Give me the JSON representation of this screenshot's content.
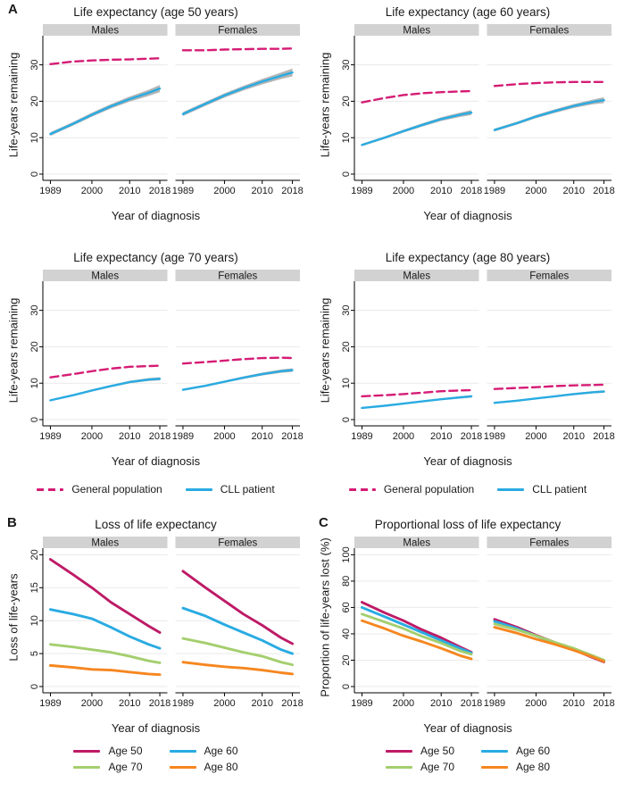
{
  "figure": {
    "panels": {
      "a_label": "A",
      "b_label": "B",
      "c_label": "C"
    }
  },
  "colors": {
    "general_population": "#D51C75",
    "cll_patient": "#29ABE2",
    "age50": "#BE1A66",
    "age60": "#29ABE2",
    "age70": "#A4CE6E",
    "age80": "#F6861F",
    "ci_band": "#B5B5B5",
    "facet_strip_bg": "#D2D2D2",
    "gridline": "#E9E9E9",
    "axis": "#000000"
  },
  "legend_a": {
    "general": "General population",
    "cll": "CLL patient"
  },
  "legend_ages": [
    {
      "label": "Age 50",
      "color_key": "age50"
    },
    {
      "label": "Age 60",
      "color_key": "age60"
    },
    {
      "label": "Age 70",
      "color_key": "age70"
    },
    {
      "label": "Age 80",
      "color_key": "age80"
    }
  ],
  "chart_data": [
    {
      "id": "life-expectancy-age-50",
      "panel": "A",
      "type": "line",
      "title": "Life expectancy (age 50 years)",
      "xlabel": "Year of diagnosis",
      "ylabel": "Life-years remaining",
      "facets": [
        "Males",
        "Females"
      ],
      "x": [
        1989,
        1995,
        2000,
        2005,
        2010,
        2015,
        2018
      ],
      "xticks": [
        1989,
        2000,
        2010,
        2018
      ],
      "yticks": [
        0,
        10,
        20,
        30
      ],
      "ylim": [
        0,
        38
      ],
      "grid": true,
      "series": [
        {
          "facet": "Males",
          "name": "General population",
          "color_key": "general_population",
          "dash": true,
          "values": [
            30.2,
            30.9,
            31.2,
            31.4,
            31.5,
            31.7,
            31.8
          ]
        },
        {
          "facet": "Males",
          "name": "CLL patient",
          "color_key": "cll_patient",
          "dash": false,
          "band_hw": [
            0.5,
            0.5,
            0.55,
            0.6,
            0.7,
            0.85,
            1.0
          ],
          "values": [
            11.0,
            13.8,
            16.3,
            18.6,
            20.6,
            22.3,
            23.5
          ]
        },
        {
          "facet": "Females",
          "name": "General population",
          "color_key": "general_population",
          "dash": true,
          "values": [
            34.0,
            34.0,
            34.2,
            34.3,
            34.4,
            34.4,
            34.5
          ]
        },
        {
          "facet": "Females",
          "name": "CLL patient",
          "color_key": "cll_patient",
          "dash": false,
          "band_hw": [
            0.55,
            0.55,
            0.6,
            0.65,
            0.75,
            0.9,
            1.1
          ],
          "values": [
            16.5,
            19.3,
            21.6,
            23.6,
            25.4,
            27.0,
            27.9
          ]
        }
      ]
    },
    {
      "id": "life-expectancy-age-60",
      "panel": "A",
      "type": "line",
      "title": "Life expectancy (age 60 years)",
      "xlabel": "Year of diagnosis",
      "ylabel": "Life-years remaining",
      "facets": [
        "Males",
        "Females"
      ],
      "x": [
        1989,
        1995,
        2000,
        2005,
        2010,
        2015,
        2018
      ],
      "xticks": [
        1989,
        2000,
        2010,
        2018
      ],
      "yticks": [
        0,
        10,
        20,
        30
      ],
      "ylim": [
        0,
        38
      ],
      "grid": true,
      "series": [
        {
          "facet": "Males",
          "name": "General population",
          "color_key": "general_population",
          "dash": true,
          "values": [
            19.7,
            20.9,
            21.7,
            22.2,
            22.5,
            22.7,
            22.8
          ]
        },
        {
          "facet": "Males",
          "name": "CLL patient",
          "color_key": "cll_patient",
          "dash": false,
          "band_hw": [
            0.35,
            0.35,
            0.4,
            0.45,
            0.5,
            0.6,
            0.7
          ],
          "values": [
            8.0,
            10.0,
            11.8,
            13.5,
            15.1,
            16.3,
            16.9
          ]
        },
        {
          "facet": "Females",
          "name": "General population",
          "color_key": "general_population",
          "dash": true,
          "values": [
            24.2,
            24.7,
            25.0,
            25.2,
            25.3,
            25.3,
            25.3
          ]
        },
        {
          "facet": "Females",
          "name": "CLL patient",
          "color_key": "cll_patient",
          "dash": false,
          "band_hw": [
            0.4,
            0.4,
            0.45,
            0.5,
            0.55,
            0.65,
            0.8
          ],
          "values": [
            12.1,
            14.0,
            15.8,
            17.3,
            18.7,
            19.8,
            20.3
          ]
        }
      ]
    },
    {
      "id": "life-expectancy-age-70",
      "panel": "A",
      "type": "line",
      "title": "Life expectancy (age 70 years)",
      "xlabel": "Year of diagnosis",
      "ylabel": "Life-years remaining",
      "facets": [
        "Males",
        "Females"
      ],
      "x": [
        1989,
        1995,
        2000,
        2005,
        2010,
        2015,
        2018
      ],
      "xticks": [
        1989,
        2000,
        2010,
        2018
      ],
      "yticks": [
        0,
        10,
        20,
        30
      ],
      "ylim": [
        0,
        38
      ],
      "grid": true,
      "series": [
        {
          "facet": "Males",
          "name": "General population",
          "color_key": "general_population",
          "dash": true,
          "values": [
            11.6,
            12.5,
            13.3,
            14.0,
            14.5,
            14.7,
            14.8
          ]
        },
        {
          "facet": "Males",
          "name": "CLL patient",
          "color_key": "cll_patient",
          "dash": false,
          "band_hw": [
            0.25,
            0.25,
            0.3,
            0.3,
            0.35,
            0.4,
            0.45
          ],
          "values": [
            5.3,
            6.7,
            8.0,
            9.2,
            10.3,
            11.0,
            11.2
          ]
        },
        {
          "facet": "Females",
          "name": "General population",
          "color_key": "general_population",
          "dash": true,
          "values": [
            15.4,
            15.8,
            16.2,
            16.6,
            16.9,
            17.0,
            16.9
          ]
        },
        {
          "facet": "Females",
          "name": "CLL patient",
          "color_key": "cll_patient",
          "dash": false,
          "band_hw": [
            0.3,
            0.3,
            0.3,
            0.35,
            0.4,
            0.45,
            0.5
          ],
          "values": [
            8.2,
            9.3,
            10.4,
            11.5,
            12.5,
            13.3,
            13.6
          ]
        }
      ]
    },
    {
      "id": "life-expectancy-age-80",
      "panel": "A",
      "type": "line",
      "title": "Life expectancy (age 80 years)",
      "xlabel": "Year of diagnosis",
      "ylabel": "Life-years remaining",
      "facets": [
        "Males",
        "Females"
      ],
      "x": [
        1989,
        1995,
        2000,
        2005,
        2010,
        2015,
        2018
      ],
      "xticks": [
        1989,
        2000,
        2010,
        2018
      ],
      "yticks": [
        0,
        10,
        20,
        30
      ],
      "ylim": [
        0,
        38
      ],
      "grid": true,
      "series": [
        {
          "facet": "Males",
          "name": "General population",
          "color_key": "general_population",
          "dash": true,
          "values": [
            6.4,
            6.7,
            7.0,
            7.4,
            7.8,
            8.0,
            8.1
          ]
        },
        {
          "facet": "Males",
          "name": "CLL patient",
          "color_key": "cll_patient",
          "dash": false,
          "band_hw": [
            0.15,
            0.15,
            0.2,
            0.2,
            0.25,
            0.3,
            0.35
          ],
          "values": [
            3.2,
            3.8,
            4.4,
            5.0,
            5.6,
            6.1,
            6.4
          ]
        },
        {
          "facet": "Females",
          "name": "General population",
          "color_key": "general_population",
          "dash": true,
          "values": [
            8.4,
            8.7,
            8.9,
            9.2,
            9.4,
            9.5,
            9.6
          ]
        },
        {
          "facet": "Females",
          "name": "CLL patient",
          "color_key": "cll_patient",
          "dash": false,
          "band_hw": [
            0.2,
            0.2,
            0.2,
            0.25,
            0.3,
            0.3,
            0.35
          ],
          "values": [
            4.6,
            5.2,
            5.8,
            6.4,
            7.0,
            7.5,
            7.7
          ]
        }
      ]
    },
    {
      "id": "loss-of-life-expectancy",
      "panel": "B",
      "type": "line",
      "title": "Loss of life expectancy",
      "xlabel": "Year of diagnosis",
      "ylabel": "Loss of life-years",
      "facets": [
        "Males",
        "Females"
      ],
      "x": [
        1989,
        1995,
        2000,
        2005,
        2010,
        2015,
        2018
      ],
      "xticks": [
        1989,
        2000,
        2010,
        2018
      ],
      "yticks": [
        0,
        5,
        10,
        15,
        20
      ],
      "ylim": [
        0,
        21
      ],
      "grid": true,
      "series": [
        {
          "facet": "Males",
          "name": "Age 50",
          "color_key": "age50",
          "values": [
            19.3,
            17.0,
            15.0,
            12.8,
            11.0,
            9.2,
            8.2
          ]
        },
        {
          "facet": "Males",
          "name": "Age 60",
          "color_key": "age60",
          "values": [
            11.7,
            11.0,
            10.3,
            9.0,
            7.6,
            6.4,
            5.8
          ]
        },
        {
          "facet": "Males",
          "name": "Age 70",
          "color_key": "age70",
          "values": [
            6.4,
            6.0,
            5.6,
            5.2,
            4.6,
            3.9,
            3.6
          ]
        },
        {
          "facet": "Males",
          "name": "Age 80",
          "color_key": "age80",
          "values": [
            3.2,
            2.9,
            2.6,
            2.5,
            2.2,
            1.9,
            1.8
          ]
        },
        {
          "facet": "Females",
          "name": "Age 50",
          "color_key": "age50",
          "values": [
            17.5,
            15.0,
            13.0,
            11.0,
            9.3,
            7.4,
            6.5
          ]
        },
        {
          "facet": "Females",
          "name": "Age 60",
          "color_key": "age60",
          "values": [
            11.9,
            10.7,
            9.4,
            8.2,
            7.0,
            5.6,
            5.0
          ]
        },
        {
          "facet": "Females",
          "name": "Age 70",
          "color_key": "age70",
          "values": [
            7.3,
            6.6,
            5.9,
            5.2,
            4.6,
            3.7,
            3.3
          ]
        },
        {
          "facet": "Females",
          "name": "Age 80",
          "color_key": "age80",
          "values": [
            3.7,
            3.3,
            3.0,
            2.8,
            2.5,
            2.1,
            1.9
          ]
        }
      ]
    },
    {
      "id": "proportional-loss-of-life-expectancy",
      "panel": "C",
      "type": "line",
      "title": "Proportional loss of life expectancy",
      "xlabel": "Year of diagnosis",
      "ylabel": "Proportion of life-years lost (%)",
      "facets": [
        "Males",
        "Females"
      ],
      "x": [
        1989,
        1995,
        2000,
        2005,
        2010,
        2015,
        2018
      ],
      "xticks": [
        1989,
        2000,
        2010,
        2018
      ],
      "yticks": [
        0,
        20,
        40,
        60,
        80,
        100
      ],
      "ylim": [
        0,
        105
      ],
      "grid": true,
      "series": [
        {
          "facet": "Males",
          "name": "Age 50",
          "color_key": "age50",
          "values": [
            64,
            56,
            50,
            43,
            37,
            30,
            26
          ]
        },
        {
          "facet": "Males",
          "name": "Age 60",
          "color_key": "age60",
          "values": [
            60,
            53,
            47,
            41,
            35,
            29,
            25.5
          ]
        },
        {
          "facet": "Males",
          "name": "Age 70",
          "color_key": "age70",
          "values": [
            55,
            49,
            44,
            38,
            33,
            27,
            24.5
          ]
        },
        {
          "facet": "Males",
          "name": "Age 80",
          "color_key": "age80",
          "values": [
            50,
            44,
            38.5,
            34,
            29,
            23.5,
            21
          ]
        },
        {
          "facet": "Females",
          "name": "Age 50",
          "color_key": "age50",
          "values": [
            51,
            45,
            39,
            33.5,
            28,
            22,
            18.7
          ]
        },
        {
          "facet": "Females",
          "name": "Age 60",
          "color_key": "age60",
          "values": [
            49.5,
            44,
            38.5,
            33,
            28,
            22.5,
            19.2
          ]
        },
        {
          "facet": "Females",
          "name": "Age 70",
          "color_key": "age70",
          "values": [
            47.5,
            43,
            38.5,
            33.5,
            29,
            23.5,
            20.0
          ]
        },
        {
          "facet": "Females",
          "name": "Age 80",
          "color_key": "age80",
          "values": [
            45,
            40.5,
            36,
            32,
            27.5,
            22.5,
            19.1
          ]
        }
      ]
    }
  ]
}
